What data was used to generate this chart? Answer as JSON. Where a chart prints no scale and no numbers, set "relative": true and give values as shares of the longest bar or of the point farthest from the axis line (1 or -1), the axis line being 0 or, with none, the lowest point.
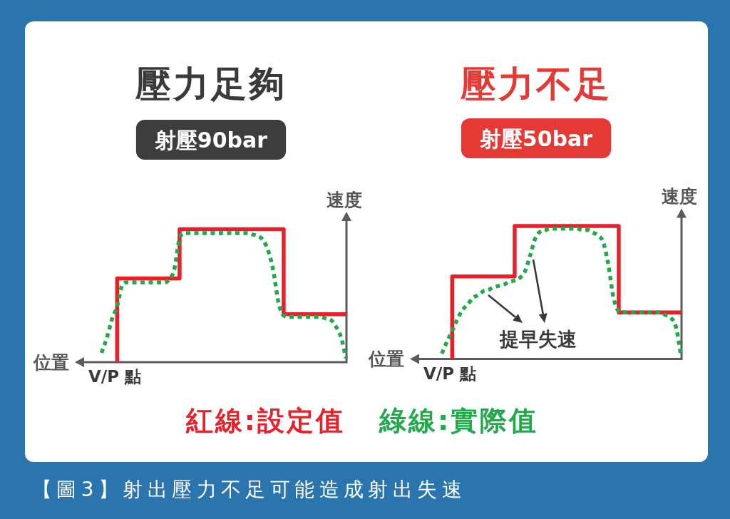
{
  "chart_data": [
    {
      "type": "line",
      "title": "壓力足夠",
      "subtitle": "射壓90bar",
      "xlabel": "位置",
      "ylabel": "速度",
      "relative": true,
      "legend": "bottom",
      "categories": [
        null,
        null,
        null,
        null,
        null,
        null,
        null,
        null,
        null,
        null,
        null,
        null,
        null,
        null,
        null,
        null,
        null,
        null,
        null,
        null,
        null,
        null,
        null,
        null,
        null,
        null,
        null,
        null,
        null,
        null,
        null,
        null,
        null,
        null,
        null,
        null,
        null,
        null,
        null,
        null,
        null,
        null,
        null,
        null,
        null,
        null,
        null,
        null
      ],
      "series": [
        {
          "name": "紅線:設定值",
          "type": "step",
          "line_style": "solid",
          "color": "#e8202a",
          "values": [
            null,
            null,
            null,
            0,
            0.63,
            0.63,
            0.63,
            0.63,
            0.63,
            0.63,
            0.63,
            0.63,
            0.63,
            0.63,
            0.63,
            0.63,
            1,
            1,
            1,
            1,
            1,
            1,
            1,
            1,
            1,
            1,
            1,
            1,
            1,
            1,
            1,
            1,
            1,
            1,
            1,
            1,
            0.36,
            0.36,
            0.36,
            0.36,
            0.36,
            0.36,
            0.36,
            0.36,
            0.36,
            0.36,
            0.36,
            0.36
          ]
        },
        {
          "name": "綠線:實際值",
          "type": "line",
          "line_style": "dotted",
          "color": "#23a84b",
          "values": [
            0.07,
            0.18,
            0.32,
            0.42,
            0.58,
            0.6,
            0.6,
            0.6,
            0.6,
            0.6,
            0.6,
            0.6,
            0.6,
            0.62,
            0.7,
            0.93,
            0.97,
            0.97,
            0.97,
            0.97,
            0.97,
            0.97,
            0.97,
            0.97,
            0.97,
            0.97,
            0.97,
            0.97,
            0.97,
            0.96,
            0.95,
            0.92,
            0.84,
            0.69,
            0.45,
            0.35,
            0.34,
            0.34,
            0.34,
            0.34,
            0.34,
            0.34,
            0.34,
            0.33,
            0.32,
            0.27,
            0.19,
            0.03
          ]
        }
      ],
      "annotations": [
        "V/P 點",
        "【圖3】射出壓力不足可能造成射出失速"
      ]
    },
    {
      "type": "line",
      "title": "壓力不足",
      "subtitle": "射壓50bar",
      "xlabel": "位置",
      "ylabel": "速度",
      "relative": true,
      "categories": [
        null,
        null,
        null,
        null,
        null,
        null,
        null,
        null,
        null,
        null,
        null,
        null,
        null,
        null,
        null,
        null,
        null,
        null,
        null,
        null,
        null,
        null,
        null,
        null,
        null,
        null,
        null,
        null,
        null,
        null,
        null,
        null,
        null,
        null,
        null,
        null,
        null,
        null,
        null,
        null,
        null,
        null,
        null,
        null,
        null,
        null,
        null,
        null
      ],
      "series": [
        {
          "type": "step",
          "line_style": "solid",
          "color": "#e8202a",
          "values": [
            null,
            null,
            null,
            0,
            0.62,
            0.62,
            0.62,
            0.62,
            0.62,
            0.62,
            0.62,
            0.62,
            0.62,
            0.62,
            0.62,
            0.62,
            1,
            1,
            1,
            1,
            1,
            1,
            1,
            1,
            1,
            1,
            1,
            1,
            1,
            1,
            1,
            1,
            1,
            1,
            1,
            1,
            0.35,
            0.35,
            0.35,
            0.35,
            0.35,
            0.35,
            0.35,
            0.35,
            0.35,
            0.35,
            0.35,
            0.35
          ]
        },
        {
          "type": "line",
          "line_style": "dotted",
          "color": "#23a84b",
          "values": [
            null,
            0.04,
            0.13,
            0.21,
            0.3,
            0.37,
            0.41,
            0.46,
            0.48,
            0.51,
            0.52,
            0.54,
            0.55,
            0.56,
            0.58,
            0.59,
            0.61,
            0.66,
            0.78,
            0.91,
            0.96,
            0.97,
            0.98,
            0.98,
            0.98,
            0.98,
            0.98,
            0.98,
            0.97,
            0.97,
            0.95,
            0.93,
            0.88,
            0.71,
            0.46,
            0.36,
            0.35,
            0.35,
            0.35,
            0.35,
            0.35,
            0.35,
            0.35,
            0.35,
            0.33,
            0.31,
            0.24,
            0.02
          ]
        }
      ],
      "annotations": [
        "V/P 點",
        "提早失速"
      ]
    }
  ]
}
